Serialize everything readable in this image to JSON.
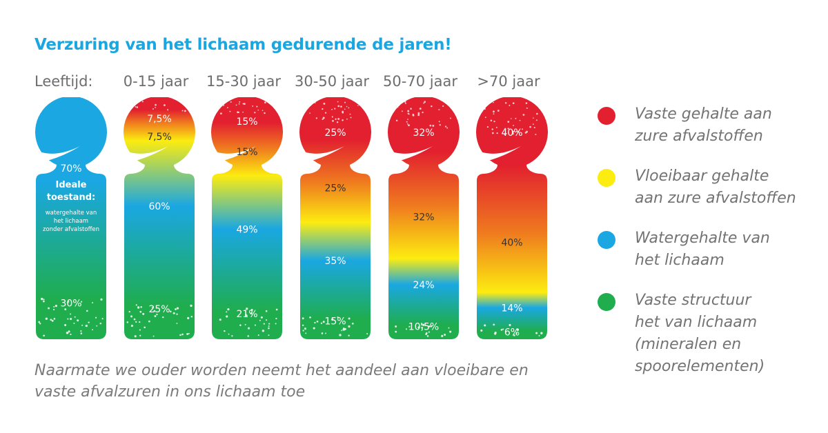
{
  "title": "Verzuring van het lichaam gedurende de jaren!",
  "age_label": "Leeftijd:",
  "caption_line1": "Naarmate we ouder worden neemt het aandeel aan vloeibare en",
  "caption_line2": "vaste afvalzuren in ons lichaam toe",
  "ideal": {
    "title_line1": "Ideale",
    "title_line2": "toestand:",
    "sub_line1": "watergehalte van",
    "sub_line2": "het lichaam",
    "sub_line3": "zonder afvalstoffen"
  },
  "colors": {
    "red": "#e2202f",
    "orange": "#ef7a1f",
    "yellow": "#fcec10",
    "blue": "#1aa7e2",
    "green": "#1fad4e",
    "title": "#1aa6e0",
    "text": "#6d6d6d"
  },
  "legend": [
    {
      "label": "Vaste gehalte aan\nzure afvalstoffen",
      "color": "#e2202f"
    },
    {
      "label": "Vloeibaar gehalte\naan zure afvalstoffen",
      "color": "#fcec10"
    },
    {
      "label": "Watergehalte van\nhet lichaam",
      "color": "#1aa7e2"
    },
    {
      "label": "Vaste structuur\nhet van lichaam\n(mineralen en\nspoorelementen)",
      "color": "#1fad4e"
    }
  ],
  "chart_data": {
    "type": "bar",
    "stacked": true,
    "categories": [
      "",
      "0-15 jaar",
      "15-30 jaar",
      "30-50 jaar",
      "50-70 jaar",
      ">70 jaar"
    ],
    "series": [
      {
        "name": "Vaste gehalte aan zure afvalstoffen",
        "values": [
          0,
          7.5,
          15,
          25,
          32,
          40
        ],
        "labels": [
          "",
          "7,5%",
          "15%",
          "25%",
          "32%",
          "40%"
        ]
      },
      {
        "name": "Vloeibaar gehalte aan zure afvalstoffen",
        "values": [
          0,
          7.5,
          15,
          25,
          32,
          40
        ],
        "labels": [
          "",
          "7,5%",
          "15%",
          "25%",
          "32%",
          "40%"
        ]
      },
      {
        "name": "Watergehalte van het lichaam",
        "values": [
          70,
          60,
          49,
          35,
          24,
          14
        ],
        "labels": [
          "70%",
          "60%",
          "49%",
          "35%",
          "24%",
          "14%"
        ]
      },
      {
        "name": "Vaste structuur het van lichaam (mineralen en spoorelementen)",
        "values": [
          30,
          25,
          21,
          15,
          10.5,
          6
        ],
        "labels": [
          "30%",
          "25%",
          "21%",
          "15%",
          "10,5%",
          "6%"
        ]
      }
    ]
  }
}
